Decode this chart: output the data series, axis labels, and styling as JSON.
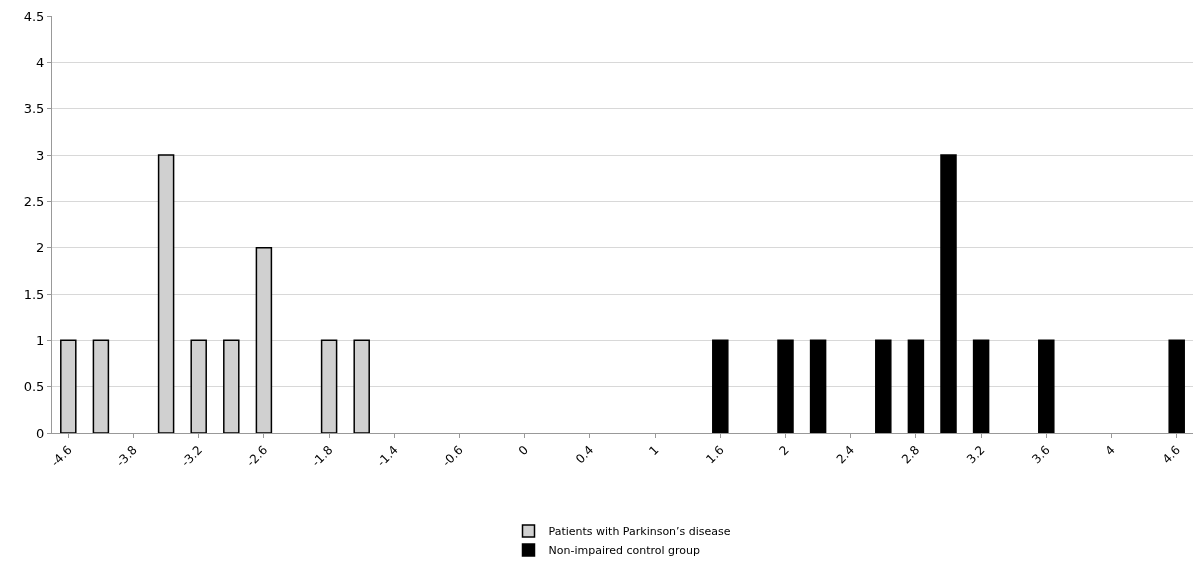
{
  "chart_data": {
    "type": "bar",
    "categories": [
      "-4.6",
      null,
      "-3.8",
      null,
      "-3.2",
      null,
      "-2.6",
      null,
      "-1.8",
      null,
      "-1.4",
      null,
      "-0.6",
      null,
      "0",
      null,
      "0.4",
      null,
      "1",
      null,
      "1.6",
      null,
      "2",
      null,
      "2.4",
      null,
      "2.8",
      null,
      "3.2",
      null,
      "3.6",
      null,
      "4",
      null,
      "4.6"
    ],
    "series": [
      {
        "name": "Patients with Parkinson’s disease",
        "color": "#d0d0d0",
        "values": [
          1,
          1,
          null,
          3,
          1,
          1,
          2,
          null,
          1,
          1,
          null,
          null,
          null,
          null,
          null,
          null,
          null,
          null,
          null,
          null,
          null,
          null,
          null,
          null,
          null,
          null,
          null,
          null,
          null,
          null,
          null,
          null,
          null,
          null,
          null
        ]
      },
      {
        "name": "Non-impaired control group",
        "color": "#000000",
        "values": [
          null,
          null,
          null,
          null,
          null,
          null,
          null,
          null,
          null,
          null,
          null,
          null,
          null,
          null,
          null,
          null,
          null,
          null,
          null,
          null,
          1,
          null,
          1,
          1,
          null,
          1,
          1,
          3,
          1,
          null,
          1,
          null,
          null,
          null,
          1
        ]
      }
    ],
    "ylim": [
      0,
      4.5
    ],
    "yticks": [
      0,
      0.5,
      1,
      1.5,
      2,
      2.5,
      3,
      3.5,
      4,
      4.5
    ],
    "grid": "y",
    "legend": "bottom"
  }
}
